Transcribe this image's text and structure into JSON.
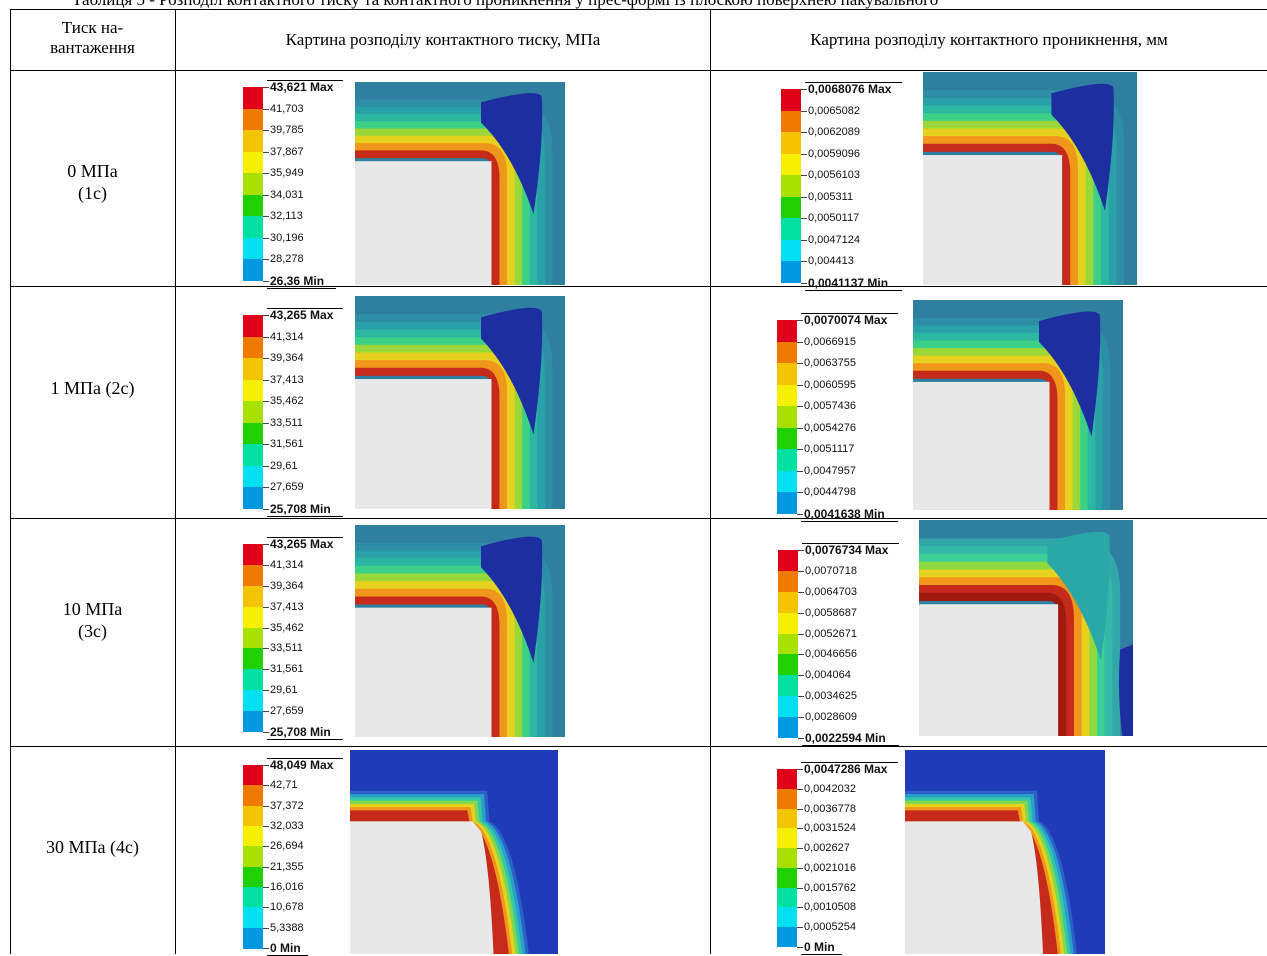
{
  "caption": "Таблиця 5 - Розподіл контактного тиску та контактного проникнення у прес-формі із плоскою поверхнею пакувального",
  "headers": {
    "col1": "Тиск на-вантаження",
    "col2": "Картина розподілу контактного тиску, МПа",
    "col3": "Картина розподілу контактного проникнення, мм"
  },
  "legend_colors": [
    "#e0001a",
    "#f07a00",
    "#f5c400",
    "#f5f000",
    "#a8e000",
    "#20d000",
    "#00e0a0",
    "#00e0f0",
    "#0098e0",
    "#0000e8"
  ],
  "rows": [
    {
      "label_line1": "0 МПа",
      "label_line2": "(1с)",
      "pressure_labels": [
        "43,621 Max",
        "41,703",
        "39,785",
        "37,867",
        "35,949",
        "34,031",
        "32,113",
        "30,196",
        "28,278",
        "26,36 Min"
      ],
      "penetration_labels": [
        "0,0068076 Max",
        "0,0065082",
        "0,0062089",
        "0,0059096",
        "0,0056103",
        "0,005311",
        "0,0050117",
        "0,0047124",
        "0,004413",
        "0,0041137 Min"
      ]
    },
    {
      "label_line1": "1 МПа (2с)",
      "label_line2": "",
      "pressure_labels": [
        "43,265 Max",
        "41,314",
        "39,364",
        "37,413",
        "35,462",
        "33,511",
        "31,561",
        "29,61",
        "27,659",
        "25,708 Min"
      ],
      "penetration_labels": [
        "0,0070074 Max",
        "0,0066915",
        "0,0063755",
        "0,0060595",
        "0,0057436",
        "0,0054276",
        "0,0051117",
        "0,0047957",
        "0,0044798",
        "0,0041638 Min"
      ]
    },
    {
      "label_line1": "10 МПа",
      "label_line2": "(3с)",
      "pressure_labels": [
        "43,265 Max",
        "41,314",
        "39,364",
        "37,413",
        "35,462",
        "33,511",
        "31,561",
        "29,61",
        "27,659",
        "25,708 Min"
      ],
      "penetration_labels": [
        "0,0076734 Max",
        "0,0070718",
        "0,0064703",
        "0,0058687",
        "0,0052671",
        "0,0046656",
        "0,004064",
        "0,0034625",
        "0,0028609",
        "0,0022594 Min"
      ]
    },
    {
      "label_line1": "30 МПа (4с)",
      "label_line2": "",
      "pressure_labels": [
        "48,049 Max",
        "42,71",
        "37,372",
        "32,033",
        "26,694",
        "21,355",
        "16,016",
        "10,678",
        "5,3388",
        "0 Min"
      ],
      "penetration_labels": [
        "0,0047286 Max",
        "0,0042032",
        "0,0036778",
        "0,0031524",
        "0,002627",
        "0,0021016",
        "0,0015762",
        "0,0010508",
        "0,0005254",
        "0 Min"
      ]
    }
  ]
}
